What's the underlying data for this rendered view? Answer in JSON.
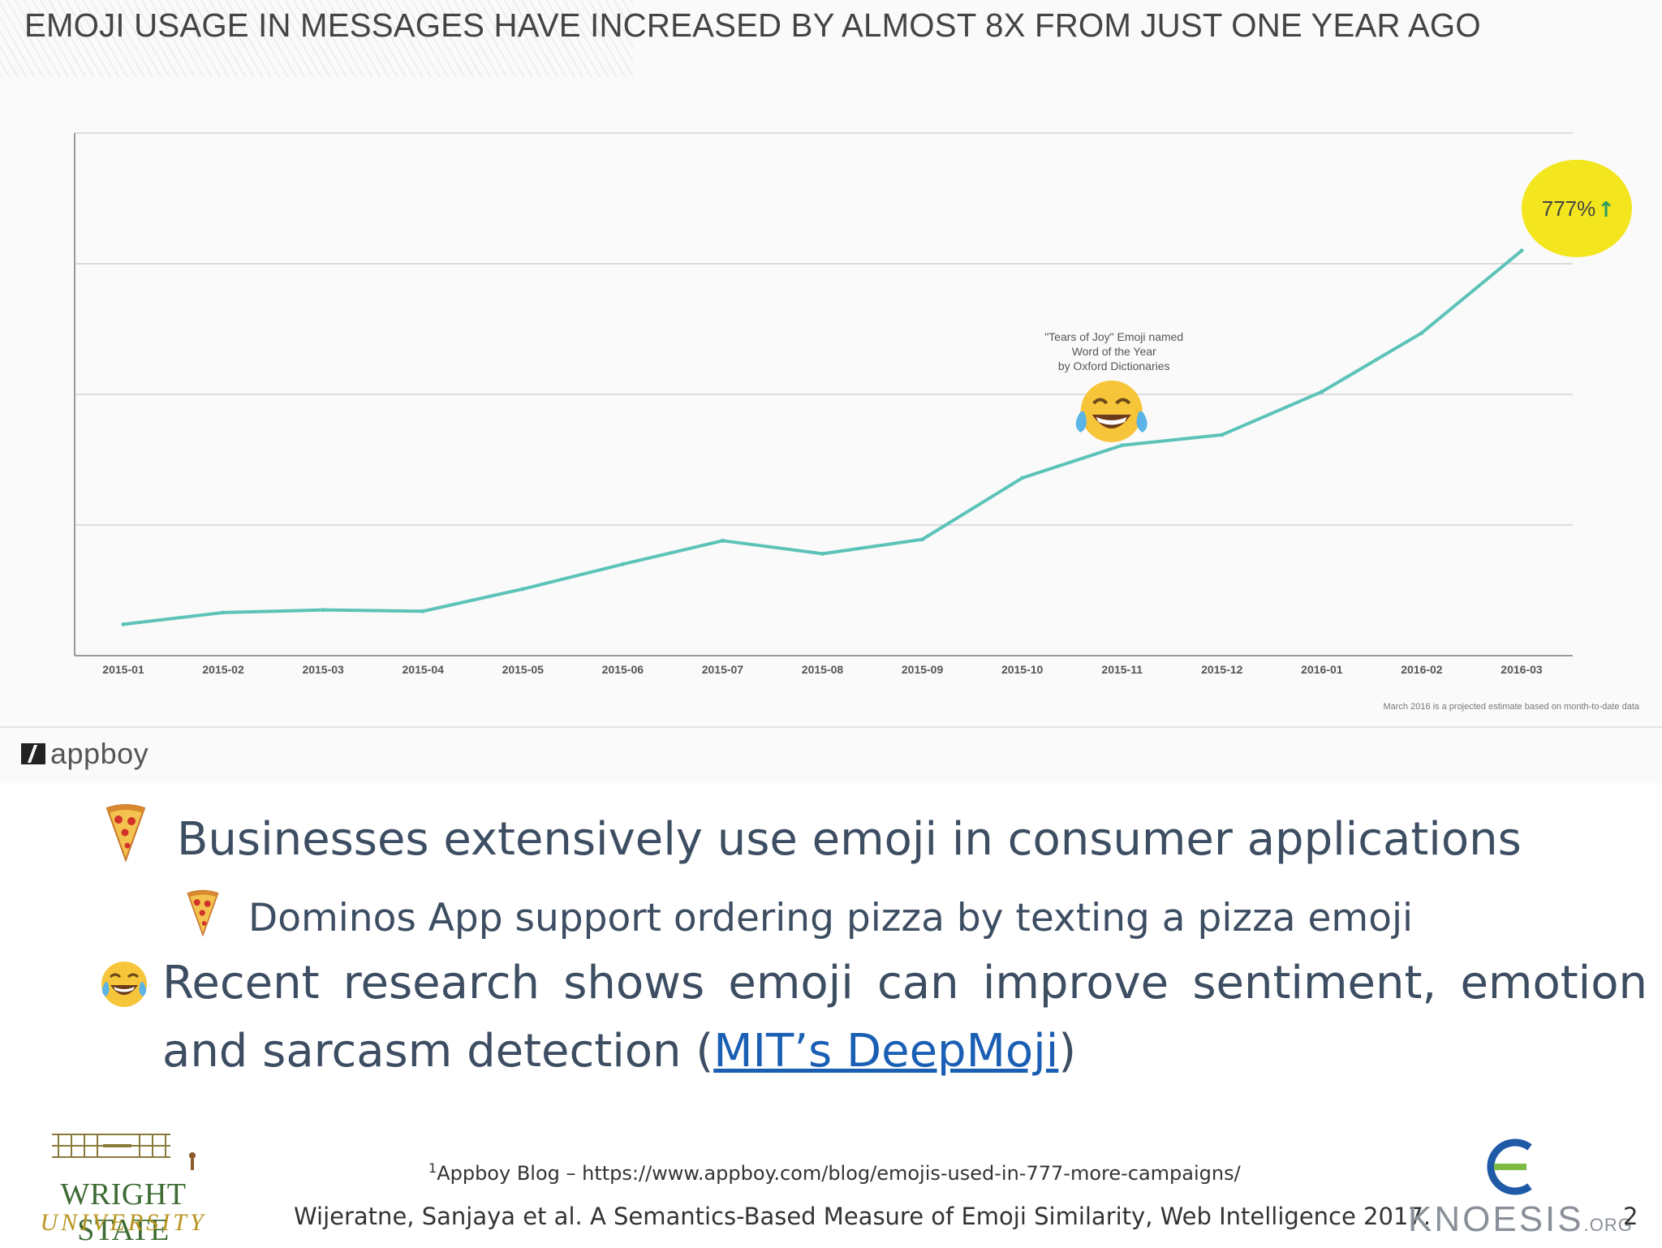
{
  "headline": "EMOJI USAGE IN MESSAGES HAVE INCREASED BY ALMOST 8X FROM JUST ONE YEAR AGO",
  "appboy_logo": "appboy",
  "chart_data": {
    "type": "line",
    "title": "EMOJI USAGE IN MESSAGES HAVE INCREASED BY ALMOST 8X FROM JUST ONE YEAR AGO",
    "xlabel": "",
    "ylabel": "",
    "categories": [
      "2015-01",
      "2015-02",
      "2015-03",
      "2015-04",
      "2015-05",
      "2015-06",
      "2015-07",
      "2015-08",
      "2015-09",
      "2015-10",
      "2015-11",
      "2015-12",
      "2016-01",
      "2016-02",
      "2016-03"
    ],
    "values": [
      0.24,
      0.33,
      0.35,
      0.34,
      0.51,
      0.7,
      0.88,
      0.78,
      0.89,
      1.36,
      1.61,
      1.69,
      2.02,
      2.47,
      3.1
    ],
    "ylim": [
      0,
      4
    ],
    "y_tick_labels": "none",
    "grid": true,
    "line_color": "#5cc3b8",
    "highlight_badge": {
      "text": "777%",
      "arrow": "↑",
      "color": "#f3e61e",
      "arrow_color": "#2e9c63"
    },
    "annotation": {
      "lines": [
        "\"Tears of Joy\" Emoji named",
        "Word of the Year",
        "by Oxford Dictionaries"
      ],
      "emoji": "😂",
      "at_category": "2015-11"
    },
    "footnote": "March 2016 is a projected estimate based on month-to-date data"
  },
  "bullets": {
    "b1": {
      "icon": "🍕",
      "text": "Businesses extensively use emoji in consumer applications"
    },
    "b2": {
      "icon": "🍕",
      "text": "Dominos App support ordering pizza by texting a pizza emoji"
    },
    "b3": {
      "icon": "😂",
      "text_before": "Recent research shows emoji can improve sentiment, emotion and sarcasm detection (",
      "link": "MIT’s DeepMoji",
      "text_after": ")"
    }
  },
  "footnote": {
    "marker": "1",
    "text": "Appboy Blog – https://www.appboy.com/blog/emojis-used-in-777-more-campaigns/"
  },
  "citation": "Wijeratne, Sanjaya et al. A Semantics-Based Measure of Emoji Similarity, Web Intelligence 2017.",
  "page_number": "2",
  "logos": {
    "wsu_name": "WRIGHT STATE",
    "wsu_sub": "UNIVERSITY",
    "knoesis_word": "KNOESIS",
    "knoesis_org": ".ORG",
    "knoesis_colors": [
      "#1f5aa6",
      "#7dbb42"
    ]
  }
}
